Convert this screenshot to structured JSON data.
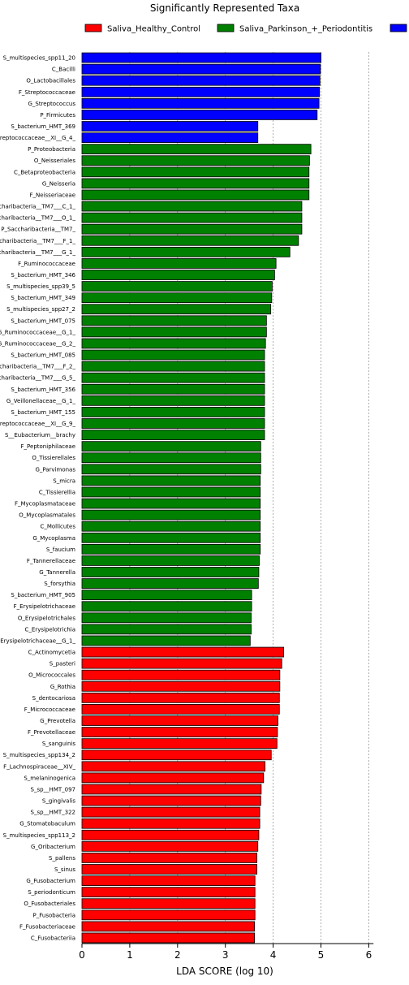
{
  "chart_data": {
    "type": "bar",
    "orientation": "horizontal",
    "title": "Significantly Represented Taxa",
    "xlabel": "LDA SCORE (log 10)",
    "ylabel": "",
    "xlim": [
      0,
      6.1
    ],
    "xticks": [
      "0",
      "1",
      "2",
      "3",
      "4",
      "5",
      "6"
    ],
    "grid": "vertical dashed",
    "legend_position": "top",
    "legend": [
      {
        "name": "Saliva_Healthy_Control",
        "color": "#ff0000"
      },
      {
        "name": "Saliva_Parkinson_+_Periodontitis",
        "color": "#008000"
      },
      {
        "name": "",
        "color": "#0000ff"
      }
    ],
    "groups": [
      {
        "color": "#0000ff",
        "categories": [
          "S_multispecies_spp11_20",
          "C_Bacilli",
          "O_Lactobacillales",
          "F_Streptococcaceae",
          "G_Streptococcus",
          "P_Firmicutes",
          "S_bacterium_HMT_369",
          "reptococcaceae__XI__G_4_"
        ],
        "values": [
          5.0,
          4.99,
          4.98,
          4.97,
          4.96,
          4.92,
          3.68,
          3.68
        ]
      },
      {
        "color": "#008000",
        "categories": [
          "P_Proteobacteria",
          "O_Neisseriales",
          "C_Betaproteobacteria",
          "G_Neisseria",
          "F_Neisseriaceae",
          "ccharibacteria__TM7___C_1_",
          "ccharibacteria__TM7___O_1_",
          "P_Saccharibacteria__TM7_",
          "ccharibacteria__TM7___F_1_",
          "ccharibacteria__TM7___G_1_",
          "F_Ruminococcaceae",
          "S_bacterium_HMT_346",
          "S_multispecies_spp39_5",
          "S_bacterium_HMT_349",
          "S_multispecies_spp27_2",
          "S_bacterium_HMT_075",
          "G_Ruminococcaceae__G_1_",
          "G_Ruminococcaceae__G_2_",
          "S_bacterium_HMT_085",
          "ccharibacteria__TM7___F_2_",
          "ccharibacteria__TM7___G_5_",
          "S_bacterium_HMT_356",
          "G_Veillonellaceae__G_1_",
          "S_bacterium_HMT_155",
          "reptococcaceae__XI__G_9_",
          "S__Eubacterium__brachy",
          "F_Peptoniphilaceae",
          "O_Tissierellales",
          "G_Parvimonas",
          "S_micra",
          "C_Tissierellia",
          "F_Mycoplasmataceae",
          "O_Mycoplasmatales",
          "C_Mollicutes",
          "G_Mycoplasma",
          "S_faucium",
          "F_Tannerellaceae",
          "G_Tannerella",
          "S_forsythia",
          "S_bacterium_HMT_905",
          "F_Erysipelotrichaceae",
          "O_Erysipelotrichales",
          "C_Erysipelotrichia",
          "Erysipelotrichaceae__G_1_"
        ],
        "values": [
          4.79,
          4.76,
          4.75,
          4.75,
          4.75,
          4.6,
          4.6,
          4.6,
          4.53,
          4.35,
          4.06,
          4.03,
          3.98,
          3.97,
          3.95,
          3.86,
          3.86,
          3.84,
          3.82,
          3.82,
          3.82,
          3.82,
          3.82,
          3.82,
          3.82,
          3.82,
          3.74,
          3.74,
          3.74,
          3.73,
          3.73,
          3.73,
          3.73,
          3.73,
          3.73,
          3.73,
          3.71,
          3.7,
          3.69,
          3.55,
          3.55,
          3.54,
          3.54,
          3.52
        ]
      },
      {
        "color": "#ff0000",
        "categories": [
          "C_Actinomycetia",
          "S_pasteri",
          "O_Micrococcales",
          "G_Rothia",
          "S_dentocariosa",
          "F_Micrococcaceae",
          "G_Prevotella",
          "F_Prevotellaceae",
          "S_sanguinis",
          "S_multispecies_spp134_2",
          "F_Lachnospiraceae__XIV_",
          "S_melaninogenica",
          "S_sp__HMT_097",
          "S_gingivalis",
          "S_sp__HMT_322",
          "G_Stomatobaculum",
          "S_multispecies_spp113_2",
          "G_Oribacterium",
          "S_pallens",
          "S_sinus",
          "G_Fusobacterium",
          "S_periodonticum",
          "O_Fusobacteriales",
          "P_Fusobacteria",
          "F_Fusobacteriaceae",
          "C_Fusobacteriia"
        ],
        "values": [
          4.22,
          4.18,
          4.14,
          4.14,
          4.13,
          4.13,
          4.1,
          4.09,
          4.08,
          3.96,
          3.83,
          3.8,
          3.75,
          3.74,
          3.72,
          3.72,
          3.7,
          3.68,
          3.66,
          3.66,
          3.62,
          3.62,
          3.62,
          3.62,
          3.61,
          3.61
        ]
      }
    ]
  }
}
